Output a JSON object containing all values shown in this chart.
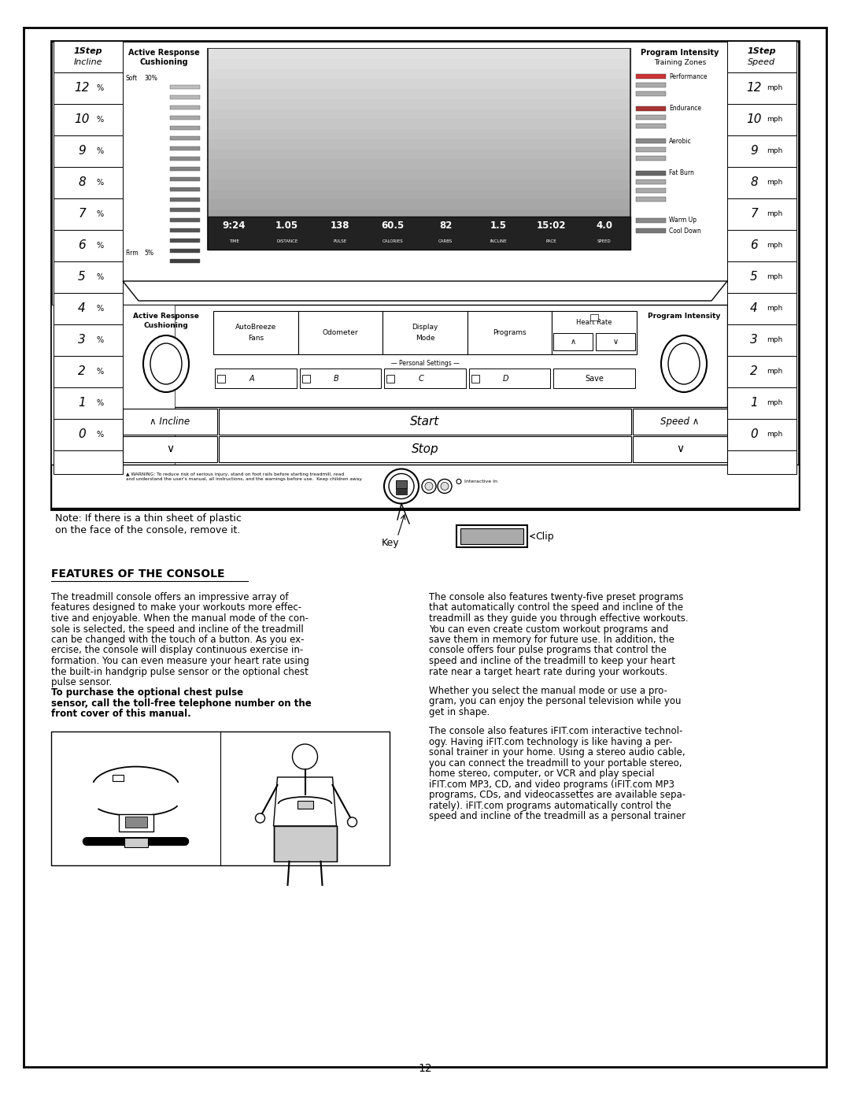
{
  "page_bg": "#ffffff",
  "left_incline_labels": [
    "1Step Incline",
    "12 %",
    "10 %",
    "9 %",
    "8 %",
    "7 %",
    "6 %",
    "5 %",
    "4 %",
    "3 %",
    "2 %",
    "1 %",
    "0 %"
  ],
  "right_speed_labels": [
    "1Step Speed",
    "12 mph",
    "10 mph",
    "9 mph",
    "8 mph",
    "7 mph",
    "6 mph",
    "5 mph",
    "4 mph",
    "3 mph",
    "2 mph",
    "1 mph",
    "0 mph"
  ],
  "training_zones": [
    "Performance",
    "Endurance",
    "Aerobic",
    "Fat Burn",
    "Warm Up",
    "Cool Down"
  ],
  "display_readings": [
    "9:24",
    "1.05",
    "138",
    "60.5",
    "82",
    "1.5",
    "15:02",
    "4.0"
  ],
  "display_labels": [
    "TIME",
    "DISTANCE",
    "PULSE",
    "CALORIES",
    "CARBS",
    "INCLINE",
    "PACE",
    "SPEED"
  ],
  "personal_settings_labels": [
    "A",
    "B",
    "C",
    "D",
    "Save"
  ],
  "note_text": "Note: If there is a thin sheet of plastic\non the face of the console, remove it.",
  "key_label": "Key",
  "clip_label": "Clip",
  "heading": "FEATURES OF THE CONSOLE",
  "col1_para1_normal": "The treadmill console offers an impressive array of\nfeatures designed to make your workouts more effec-\ntive and enjoyable. When the manual mode of the con-\nsole is selected, the speed and incline of the treadmill\ncan be changed with the touch of a button. As you ex-\nercise, the console will display continuous exercise in-\nformation. You can even measure your heart rate using\nthe built-in handgrip pulse sensor or the optional chest\npulse sensor. ",
  "col1_para1_bold": "To purchase the optional chest pulse\nsensor, call the toll-free telephone number on the\nfront cover of this manual.",
  "col2_para1": "The console also features twenty-five preset programs\nthat automatically control the speed and incline of the\ntreadmill as they guide you through effective workouts.\nYou can even create custom workout programs and\nsave them in memory for future use. In addition, the\nconsole offers four pulse programs that control the\nspeed and incline of the treadmill to keep your heart\nrate near a target heart rate during your workouts.",
  "col2_para2": "Whether you select the manual mode or use a pro-\ngram, you can enjoy the personal television while you\nget in shape.",
  "col2_para3": "The console also features iFIT.com interactive technol-\nogy. Having iFIT.com technology is like having a per-\nsonal trainer in your home. Using a stereo audio cable,\nyou can connect the treadmill to your portable stereo,\nhome stereo, computer, or VCR and play special\niFIT.com MP3, CD, and video programs (iFIT.com MP3\nprograms, CDs, and videocassettes are available sepa-\nrately). iFIT.com programs automatically control the\nspeed and incline of the treadmill as a personal trainer",
  "page_number": "12"
}
